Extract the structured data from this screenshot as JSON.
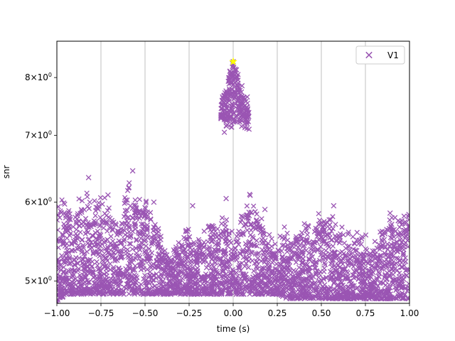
{
  "chart_data": {
    "type": "scatter",
    "title": "",
    "xlabel": "time (s)",
    "ylabel": "snr",
    "xlim": [
      -1.0,
      1.0
    ],
    "ylim": [
      4.75,
      8.7
    ],
    "yscale": "log",
    "grid": "x-major",
    "legend": "top-right",
    "x_ticks": [
      {
        "value": -1.0,
        "label": "−1.00"
      },
      {
        "value": -0.75,
        "label": "−0.75"
      },
      {
        "value": -0.5,
        "label": "−0.50"
      },
      {
        "value": -0.25,
        "label": "−0.25"
      },
      {
        "value": 0.0,
        "label": "0.00"
      },
      {
        "value": 0.25,
        "label": "0.25"
      },
      {
        "value": 0.5,
        "label": "0.50"
      },
      {
        "value": 0.75,
        "label": "0.75"
      },
      {
        "value": 1.0,
        "label": "1.00"
      }
    ],
    "y_ticks": [
      {
        "value": 5,
        "base": "5",
        "exp": "0"
      },
      {
        "value": 6,
        "base": "6",
        "exp": "0"
      },
      {
        "value": 7,
        "base": "7",
        "exp": "0"
      },
      {
        "value": 8,
        "base": "8",
        "exp": "0"
      }
    ],
    "series": [
      {
        "name": "V1",
        "color": "#9a55b3",
        "marker": "x",
        "envelope_x": [
          -1.0,
          -0.95,
          -0.9,
          -0.85,
          -0.8,
          -0.75,
          -0.7,
          -0.65,
          -0.6,
          -0.55,
          -0.5,
          -0.45,
          -0.4,
          -0.35,
          -0.3,
          -0.25,
          -0.2,
          -0.15,
          -0.1,
          -0.05,
          0.0,
          0.05,
          0.1,
          0.15,
          0.2,
          0.25,
          0.3,
          0.35,
          0.4,
          0.45,
          0.5,
          0.55,
          0.6,
          0.65,
          0.7,
          0.75,
          0.8,
          0.85,
          0.9,
          0.95,
          1.0
        ],
        "envelope_top": [
          6.1,
          5.95,
          5.75,
          6.1,
          6.0,
          6.05,
          5.85,
          5.6,
          6.3,
          6.05,
          5.95,
          5.7,
          5.4,
          5.3,
          5.5,
          5.6,
          5.45,
          5.65,
          5.7,
          5.75,
          5.5,
          5.9,
          6.05,
          5.8,
          5.5,
          5.45,
          5.6,
          5.5,
          5.65,
          5.55,
          5.85,
          5.8,
          5.6,
          5.5,
          5.55,
          5.5,
          5.4,
          5.6,
          5.8,
          5.7,
          5.95
        ],
        "envelope_bottom": [
          4.75,
          4.85,
          4.85,
          4.85,
          4.85,
          4.85,
          4.85,
          4.85,
          4.85,
          4.85,
          4.85,
          4.85,
          4.85,
          4.85,
          4.85,
          4.85,
          4.85,
          4.85,
          4.85,
          4.85,
          4.85,
          4.85,
          4.85,
          4.85,
          4.85,
          4.85,
          4.8,
          4.8,
          4.8,
          4.8,
          4.8,
          4.8,
          4.8,
          4.8,
          4.8,
          4.8,
          4.8,
          4.8,
          4.8,
          4.8,
          4.8
        ],
        "outliers": [
          {
            "x": -0.82,
            "y": 6.35
          },
          {
            "x": -0.57,
            "y": 6.45
          },
          {
            "x": -0.71,
            "y": 6.1
          },
          {
            "x": -0.45,
            "y": 6.0
          },
          {
            "x": -0.23,
            "y": 5.95
          },
          {
            "x": -0.04,
            "y": 6.05
          },
          {
            "x": 0.18,
            "y": 5.9
          },
          {
            "x": 0.57,
            "y": 5.95
          },
          {
            "x": 0.89,
            "y": 5.85
          }
        ],
        "peak_cluster": {
          "x_range": [
            -0.07,
            0.09
          ],
          "y_range": [
            7.05,
            8.3
          ],
          "outline": [
            {
              "x": -0.07,
              "y": 7.3
            },
            {
              "x": -0.05,
              "y": 7.05
            },
            {
              "x": -0.02,
              "y": 7.4
            },
            {
              "x": -0.01,
              "y": 8.0
            },
            {
              "x": 0.0,
              "y": 8.3
            },
            {
              "x": 0.02,
              "y": 8.0
            },
            {
              "x": 0.03,
              "y": 7.5
            },
            {
              "x": 0.05,
              "y": 7.85
            },
            {
              "x": 0.08,
              "y": 7.65
            },
            {
              "x": 0.09,
              "y": 7.1
            }
          ]
        }
      }
    ],
    "highlight": {
      "x": 0.0,
      "y": 8.3,
      "color": "#ffff00",
      "marker": "star"
    }
  }
}
